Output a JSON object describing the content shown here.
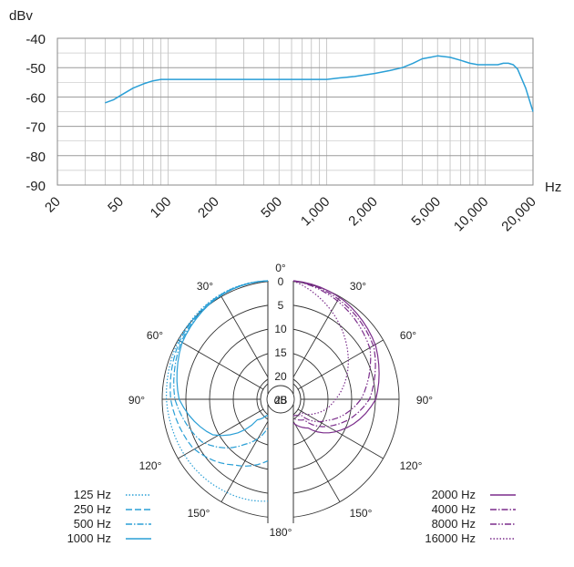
{
  "chart_data": [
    {
      "type": "line",
      "ylabel": "dBv",
      "xlabel": "Hz",
      "xscale": "log",
      "xlim": [
        20,
        20000
      ],
      "ylim": [
        -90,
        -40
      ],
      "yticks": [
        "-40",
        "-50",
        "-60",
        "-70",
        "-80",
        "-90"
      ],
      "xticks": [
        {
          "v": 20,
          "label": "20"
        },
        {
          "v": 50,
          "label": "50"
        },
        {
          "v": 100,
          "label": "100"
        },
        {
          "v": 200,
          "label": "200"
        },
        {
          "v": 500,
          "label": "500"
        },
        {
          "v": 1000,
          "label": "1,000"
        },
        {
          "v": 2000,
          "label": "2,000"
        },
        {
          "v": 5000,
          "label": "5,000"
        },
        {
          "v": 10000,
          "label": "10,000"
        },
        {
          "v": 20000,
          "label": "20,000"
        }
      ],
      "grid": true,
      "color": "#2a9fd6",
      "series": [
        {
          "x": [
            40,
            45,
            50,
            60,
            70,
            80,
            90,
            100,
            150,
            200,
            300,
            500,
            700,
            900,
            1000,
            1200,
            1500,
            2000,
            2500,
            3000,
            3500,
            4000,
            4500,
            5000,
            6000,
            7000,
            8000,
            9000,
            10000,
            11000,
            12000,
            13000,
            14000,
            15000,
            16000,
            18000,
            20000
          ],
          "y": [
            -62,
            -61,
            -59.5,
            -57,
            -55.5,
            -54.5,
            -54,
            -54,
            -54,
            -54,
            -54,
            -54,
            -54,
            -54,
            -54,
            -53.5,
            -53,
            -52,
            -51,
            -50,
            -48.5,
            -47,
            -46.5,
            -46,
            -46.5,
            -47.5,
            -48.5,
            -49,
            -49,
            -49,
            -49,
            -48.5,
            -48.5,
            -49,
            -50.5,
            -57,
            -65
          ]
        }
      ]
    },
    {
      "type": "polar",
      "angle_labels": [
        "0°",
        "30°",
        "60°",
        "90°",
        "120°",
        "150°",
        "180°",
        "30°",
        "60°",
        "90°",
        "120°",
        "150°"
      ],
      "radial_labels": [
        "0",
        "5",
        "10",
        "15",
        "20",
        "25",
        "dB"
      ],
      "rlim": [
        0,
        25
      ],
      "left_color": "#2a9fd6",
      "right_color": "#7b2d8b",
      "legend_left": [
        {
          "label": "125 Hz",
          "dash": "dot"
        },
        {
          "label": "250 Hz",
          "dash": "dash"
        },
        {
          "label": "500 Hz",
          "dash": "dashdot"
        },
        {
          "label": "1000 Hz",
          "dash": "solid"
        }
      ],
      "legend_right": [
        {
          "label": "2000 Hz",
          "dash": "solid"
        },
        {
          "label": "4000 Hz",
          "dash": "dashdot"
        },
        {
          "label": "8000 Hz",
          "dash": "dashdotdot"
        },
        {
          "label": "16000 Hz",
          "dash": "dot"
        }
      ],
      "series_left": [
        {
          "name": "125 Hz",
          "angles": [
            0,
            30,
            60,
            90,
            120,
            150,
            180
          ],
          "db": [
            0,
            0.2,
            0.5,
            1.0,
            2.0,
            3.0,
            3.5
          ]
        },
        {
          "name": "250 Hz",
          "angles": [
            0,
            30,
            60,
            90,
            120,
            150,
            180
          ],
          "db": [
            0,
            0.3,
            0.8,
            2.0,
            4.5,
            9.0,
            12.0
          ]
        },
        {
          "name": "500 Hz",
          "angles": [
            0,
            30,
            60,
            90,
            120,
            150,
            180
          ],
          "db": [
            0,
            0.4,
            1.2,
            3.0,
            7.0,
            14.0,
            19.0
          ]
        },
        {
          "name": "1000 Hz",
          "angles": [
            0,
            30,
            60,
            90,
            120,
            150,
            180
          ],
          "db": [
            0,
            0.5,
            1.5,
            4.0,
            10.0,
            20.0,
            22.0
          ]
        }
      ],
      "series_right": [
        {
          "name": "2000 Hz",
          "angles": [
            0,
            30,
            60,
            90,
            120,
            150,
            180
          ],
          "db": [
            0,
            1.0,
            2.5,
            5.5,
            12.0,
            18.0,
            20.0
          ]
        },
        {
          "name": "4000 Hz",
          "angles": [
            0,
            30,
            60,
            90,
            120,
            150,
            180
          ],
          "db": [
            0,
            1.5,
            3.0,
            7.0,
            14.0,
            20.0,
            21.0
          ]
        },
        {
          "name": "8000 Hz",
          "angles": [
            0,
            30,
            60,
            90,
            120,
            150,
            180
          ],
          "db": [
            0,
            2.0,
            4.0,
            9.0,
            16.0,
            21.0,
            22.0
          ]
        },
        {
          "name": "16000 Hz",
          "angles": [
            0,
            30,
            60,
            90,
            120,
            150,
            180
          ],
          "db": [
            0,
            5.0,
            10.0,
            15.0,
            19.0,
            22.0,
            23.0
          ]
        }
      ]
    }
  ]
}
